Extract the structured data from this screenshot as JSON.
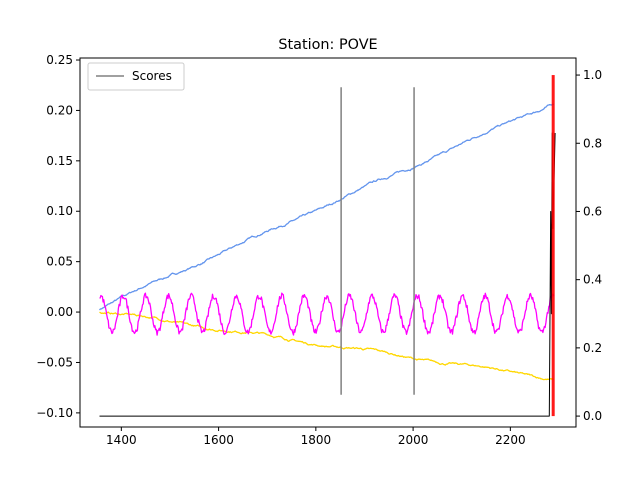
{
  "chart_data": {
    "type": "line",
    "title": "Station: POVE",
    "xlabel": "",
    "ylabel": "",
    "x_range": [
      1355,
      2300
    ],
    "xlim": [
      1315,
      2335
    ],
    "ylim_left": [
      -0.114,
      0.252
    ],
    "ylim_right": [
      -0.032,
      1.05
    ],
    "x_ticks": [
      1400,
      1600,
      1800,
      2000,
      2200
    ],
    "y_ticks_left": [
      -0.1,
      -0.05,
      0.0,
      0.05,
      0.1,
      0.15,
      0.2,
      0.25
    ],
    "y_tick_labels_left": [
      "−0.10",
      "−0.05",
      "0.00",
      "0.05",
      "0.10",
      "0.15",
      "0.20",
      "0.25"
    ],
    "y_ticks_right": [
      0.0,
      0.2,
      0.4,
      0.6,
      0.8,
      1.0
    ],
    "y_tick_labels_right": [
      "0.0",
      "0.2",
      "0.4",
      "0.6",
      "0.8",
      "1.0"
    ],
    "legend": {
      "position": "top-left",
      "entries": [
        {
          "label": "Scores",
          "color": "#000000"
        }
      ]
    },
    "series": [
      {
        "axis": "left",
        "color": "#6495ED",
        "trend": "linear",
        "x_start": 1355,
        "x_end": 2290,
        "y_start": 0.004,
        "y_end": 0.208
      },
      {
        "axis": "left",
        "color": "#FFD700",
        "trend": "linear",
        "x_start": 1355,
        "x_end": 2290,
        "y_start": 0.001,
        "y_end": -0.066
      },
      {
        "axis": "left",
        "color": "#FF00FF",
        "trend": "seasonal",
        "x_start": 1355,
        "x_end": 2290,
        "y_mean": -0.002,
        "amplitude": 0.018,
        "period": 46.5
      },
      {
        "axis": "right",
        "name": "Scores",
        "color": "#000000",
        "baseline": 0.0,
        "x_start": 1355,
        "x_end": 2280,
        "spike_x": [
          2283,
          2292
        ],
        "spike_max": 0.83
      }
    ],
    "vertical_lines": [
      {
        "x": 1852,
        "color": "#808080",
        "y_from": -0.082,
        "y_to": 0.223
      },
      {
        "x": 2002,
        "color": "#808080",
        "y_from": -0.082,
        "y_to": 0.223
      }
    ],
    "highlight_band": {
      "color": "#FF0000",
      "x_from": 2285,
      "x_to": 2291
    }
  }
}
